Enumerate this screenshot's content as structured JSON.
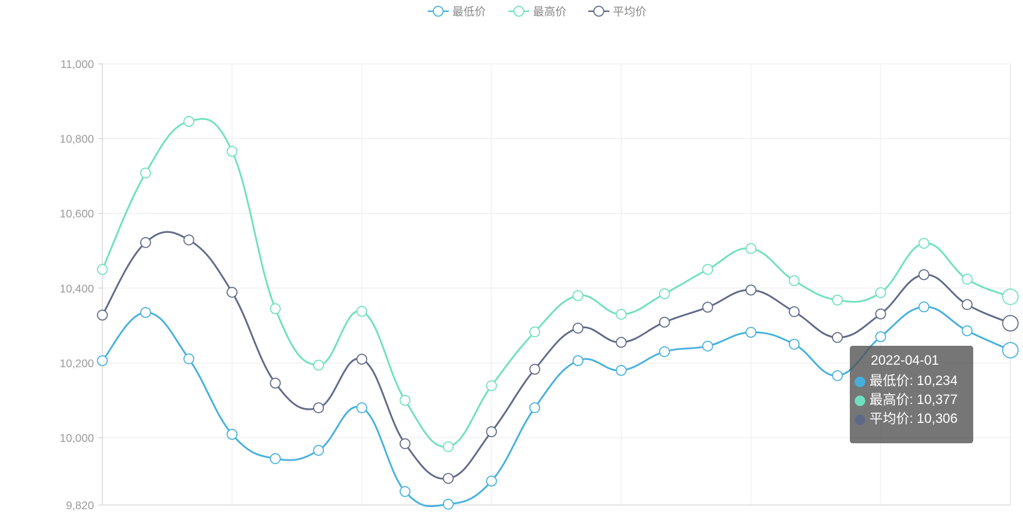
{
  "chart_data": {
    "type": "line",
    "smooth": true,
    "y_ticks": [
      "9,820",
      "10,000",
      "10,200",
      "10,400",
      "10,600",
      "10,800",
      "11,000"
    ],
    "y_tick_values": [
      9820,
      10000,
      10200,
      10400,
      10600,
      10800,
      11000
    ],
    "ylim": [
      9820,
      11000
    ],
    "grid": true,
    "legend_placement": "top-center",
    "x_index": [
      0,
      1,
      2,
      3,
      4,
      5,
      6,
      7,
      8,
      9,
      10,
      11,
      12,
      13,
      14,
      15,
      16,
      17,
      18,
      19,
      20,
      21
    ],
    "series": [
      {
        "name": "最低价",
        "color": "#45b0dd",
        "values": [
          10206,
          10335,
          10211,
          10009,
          9944,
          9966,
          10080,
          9856,
          9822,
          9884,
          10080,
          10206,
          10180,
          10230,
          10245,
          10282,
          10250,
          10166,
          10270,
          10350,
          10286,
          10234
        ]
      },
      {
        "name": "最高价",
        "color": "#6ee0be",
        "values": [
          10450,
          10708,
          10846,
          10766,
          10345,
          10194,
          10338,
          10100,
          9976,
          10139,
          10283,
          10380,
          10330,
          10385,
          10450,
          10506,
          10420,
          10368,
          10388,
          10520,
          10424,
          10377
        ]
      },
      {
        "name": "平均价",
        "color": "#5f6887",
        "values": [
          10328,
          10522,
          10529,
          10389,
          10146,
          10080,
          10210,
          9984,
          9891,
          10016,
          10183,
          10293,
          10255,
          10309,
          10349,
          10395,
          10337,
          10268,
          10331,
          10436,
          10356,
          10306
        ]
      }
    ]
  },
  "tooltip": {
    "title": "2022-04-01",
    "rows": [
      {
        "label": "最低价: 10,234",
        "color": "#45b0dd"
      },
      {
        "label": "最高价: 10,377",
        "color": "#6ee0be"
      },
      {
        "label": "平均价: 10,306",
        "color": "#5f6887"
      }
    ]
  }
}
